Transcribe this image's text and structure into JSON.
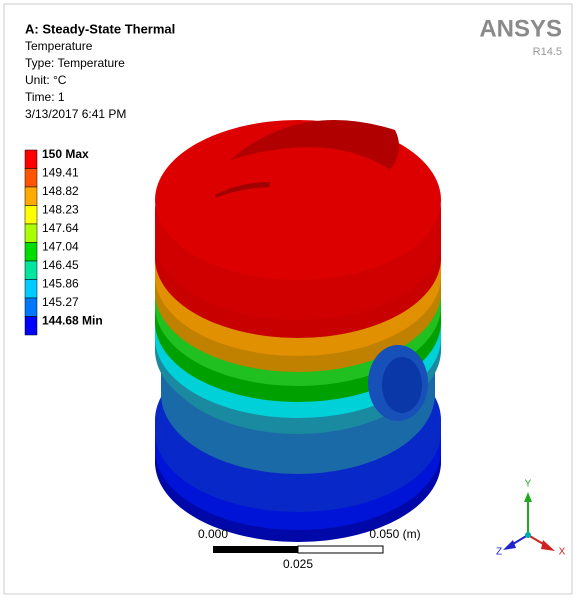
{
  "header": {
    "title": "A: Steady-State Thermal",
    "lines": [
      "Temperature",
      "Type: Temperature",
      "Unit: °C",
      "Time: 1",
      "3/13/2017 6:41 PM"
    ]
  },
  "brand": {
    "logo": "ANSYS",
    "version": "R14.5"
  },
  "legend": {
    "labels": [
      "150 Max",
      "149.41",
      "148.82",
      "148.23",
      "147.64",
      "147.04",
      "146.45",
      "145.86",
      "145.27",
      "144.68 Min"
    ]
  },
  "scale_bar": {
    "left": "0.000",
    "right": "0.050 (m)",
    "middle": "0.025"
  },
  "axes": {
    "x": "X",
    "y": "Y",
    "z": "Z"
  }
}
